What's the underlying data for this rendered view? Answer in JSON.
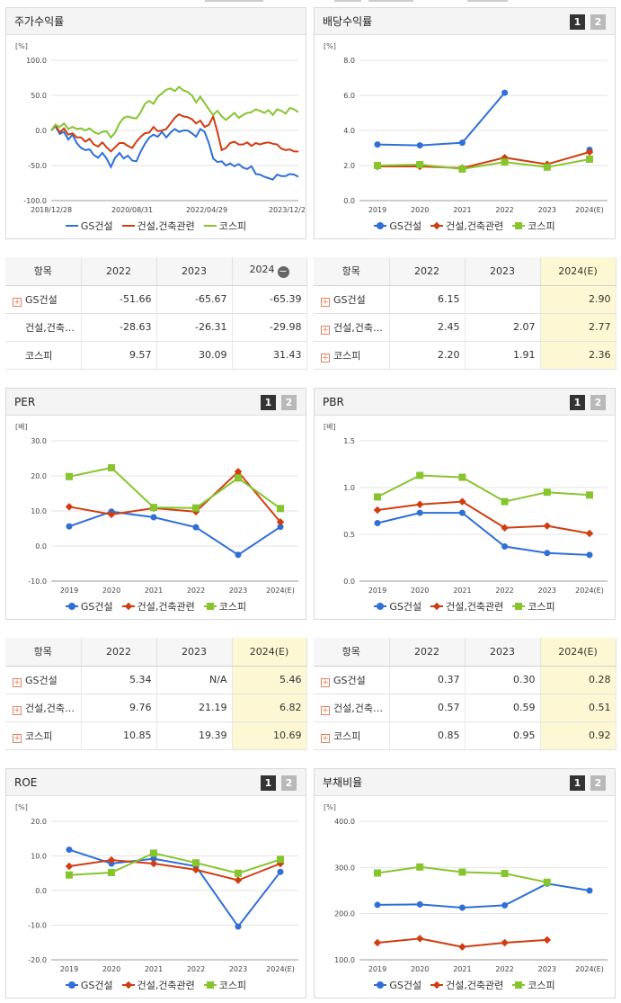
{
  "legend": {
    "s1": "GS건설",
    "s2": "건설,건축관련",
    "s3": "코스피"
  },
  "colors": {
    "s1": "#2f6fd8",
    "s2": "#d03d10",
    "s3": "#86c52e"
  },
  "pager": {
    "p1": "1",
    "p2": "2"
  },
  "table_header_item": "항목",
  "charts": {
    "return": {
      "title": "주가수익률",
      "unit": "[%]",
      "type": "line",
      "y_ticks": [
        "100.0",
        "50.0",
        "0.0",
        "-50.0",
        "-100.0"
      ],
      "ylim": [
        -100,
        100
      ],
      "x_labels": [
        "2018/12/28",
        "2020/08/31",
        "2022/04/29",
        "2023/12/28"
      ],
      "series": {
        "s1": [
          0,
          6,
          -5,
          -2,
          -13,
          -6,
          -18,
          -25,
          -28,
          -27,
          -35,
          -39,
          -32,
          -40,
          -52,
          -39,
          -32,
          -40,
          -36,
          -43,
          -44,
          -30,
          -19,
          -10,
          -6,
          -9,
          -2,
          -10,
          -3,
          2,
          -2,
          0,
          0,
          -4,
          -9,
          2,
          -2,
          -18,
          -40,
          -45,
          -44,
          -50,
          -47,
          -51,
          -48,
          -53,
          -55,
          -51,
          -62,
          -63,
          -66,
          -68,
          -70,
          -63,
          -65,
          -65,
          -62,
          -63,
          -66
        ],
        "s2": [
          0,
          8,
          -3,
          3,
          -6,
          -4,
          -10,
          -10,
          -16,
          -12,
          -20,
          -23,
          -17,
          -24,
          -30,
          -24,
          -18,
          -18,
          -22,
          -25,
          -16,
          -9,
          -4,
          -3,
          5,
          -1,
          0,
          2,
          10,
          18,
          23,
          20,
          19,
          16,
          10,
          14,
          5,
          8,
          20,
          -2,
          -28,
          -25,
          -18,
          -16,
          -20,
          -20,
          -17,
          -22,
          -18,
          -20,
          -18,
          -17,
          -19,
          -20,
          -26,
          -28,
          -27,
          -30,
          -30
        ],
        "s3": [
          0,
          8,
          5,
          10,
          2,
          5,
          2,
          3,
          0,
          3,
          -2,
          -5,
          -2,
          -1,
          -10,
          -3,
          10,
          18,
          20,
          18,
          17,
          26,
          38,
          42,
          38,
          48,
          53,
          58,
          60,
          56,
          62,
          57,
          55,
          50,
          40,
          48,
          39,
          30,
          22,
          28,
          20,
          15,
          20,
          25,
          18,
          22,
          25,
          26,
          30,
          28,
          25,
          29,
          22,
          30,
          28,
          24,
          32,
          30,
          26
        ]
      }
    },
    "dividend": {
      "title": "배당수익률",
      "unit": "[%]",
      "type": "line",
      "y_ticks": [
        "8.0",
        "6.0",
        "4.0",
        "2.0",
        "0.0"
      ],
      "ylim": [
        0,
        8
      ],
      "x_labels": [
        "2019",
        "2020",
        "2021",
        "2022",
        "2023",
        "2024(E)"
      ],
      "series": {
        "s1": [
          3.2,
          3.15,
          3.3,
          6.15,
          null,
          2.9
        ],
        "s2": [
          1.95,
          1.95,
          1.85,
          2.45,
          2.07,
          2.77
        ],
        "s3": [
          2.0,
          2.05,
          1.8,
          2.2,
          1.91,
          2.36
        ]
      }
    },
    "per": {
      "title": "PER",
      "unit": "[배]",
      "type": "line",
      "y_ticks": [
        "30.0",
        "20.0",
        "10.0",
        "0.0",
        "-10.0"
      ],
      "ylim": [
        -10,
        30
      ],
      "x_labels": [
        "2019",
        "2020",
        "2021",
        "2022",
        "2023",
        "2024(E)"
      ],
      "series": {
        "s1": [
          5.6,
          9.8,
          8.2,
          5.34,
          -2.5,
          5.46
        ],
        "s2": [
          11.2,
          9.0,
          10.8,
          9.76,
          21.19,
          6.82
        ],
        "s3": [
          19.8,
          22.3,
          11.0,
          10.85,
          19.39,
          10.69
        ]
      }
    },
    "pbr": {
      "title": "PBR",
      "unit": "[배]",
      "type": "line",
      "y_ticks": [
        "1.5",
        "1.0",
        "0.5",
        "0.0"
      ],
      "ylim": [
        0,
        1.5
      ],
      "x_labels": [
        "2019",
        "2020",
        "2021",
        "2022",
        "2023",
        "2024(E)"
      ],
      "series": {
        "s1": [
          0.62,
          0.73,
          0.73,
          0.37,
          0.3,
          0.28
        ],
        "s2": [
          0.76,
          0.82,
          0.85,
          0.57,
          0.59,
          0.51
        ],
        "s3": [
          0.9,
          1.13,
          1.11,
          0.85,
          0.95,
          0.92
        ]
      }
    },
    "roe": {
      "title": "ROE",
      "unit": "[%]",
      "type": "line",
      "y_ticks": [
        "20.0",
        "10.0",
        "0.0",
        "-10.0",
        "-20.0"
      ],
      "ylim": [
        -20,
        20
      ],
      "x_labels": [
        "2019",
        "2020",
        "2021",
        "2022",
        "2023",
        "2024(E)"
      ],
      "series": {
        "s1": [
          11.8,
          7.8,
          9.2,
          7.0,
          -10.4,
          5.4
        ],
        "s2": [
          7.0,
          8.8,
          7.8,
          6.0,
          3.0,
          7.8
        ],
        "s3": [
          4.5,
          5.2,
          10.8,
          8.0,
          5.0,
          9.0
        ]
      }
    },
    "debt": {
      "title": "부채비율",
      "unit": "[%]",
      "type": "line",
      "y_ticks": [
        "400.0",
        "300.0",
        "200.0",
        "100.0"
      ],
      "ylim": [
        100,
        400
      ],
      "x_labels": [
        "2019",
        "2020",
        "2021",
        "2022",
        "2023",
        "2024(E)"
      ],
      "series": {
        "s1": [
          219,
          220,
          213,
          218,
          265,
          250
        ],
        "s2": [
          137,
          146,
          128,
          137,
          143,
          null
        ],
        "s3": [
          288,
          301,
          290,
          287,
          268,
          null
        ]
      }
    }
  },
  "tables": {
    "return": {
      "cols": [
        "2022",
        "2023",
        "2024"
      ],
      "rows": [
        {
          "name": "GS건설",
          "vals": [
            "-51.66",
            "-65.67",
            "-65.39"
          ]
        },
        {
          "name": "건설,건축…",
          "vals": [
            "-28.63",
            "-26.31",
            "-29.98"
          ]
        },
        {
          "name": "코스피",
          "vals": [
            "9.57",
            "30.09",
            "31.43"
          ]
        }
      ]
    },
    "dividend": {
      "cols": [
        "2022",
        "2023",
        "2024(E)"
      ],
      "rows": [
        {
          "name": "GS건설",
          "vals": [
            "6.15",
            "",
            "2.90"
          ]
        },
        {
          "name": "건설,건축…",
          "vals": [
            "2.45",
            "2.07",
            "2.77"
          ]
        },
        {
          "name": "코스피",
          "vals": [
            "2.20",
            "1.91",
            "2.36"
          ]
        }
      ]
    },
    "per": {
      "cols": [
        "2022",
        "2023",
        "2024(E)"
      ],
      "rows": [
        {
          "name": "GS건설",
          "vals": [
            "5.34",
            "N/A",
            "5.46"
          ]
        },
        {
          "name": "건설,건축…",
          "vals": [
            "9.76",
            "21.19",
            "6.82"
          ]
        },
        {
          "name": "코스피",
          "vals": [
            "10.85",
            "19.39",
            "10.69"
          ]
        }
      ]
    },
    "pbr": {
      "cols": [
        "2022",
        "2023",
        "2024(E)"
      ],
      "rows": [
        {
          "name": "GS건설",
          "vals": [
            "0.37",
            "0.30",
            "0.28"
          ]
        },
        {
          "name": "건설,건축…",
          "vals": [
            "0.57",
            "0.59",
            "0.51"
          ]
        },
        {
          "name": "코스피",
          "vals": [
            "0.85",
            "0.95",
            "0.92"
          ]
        }
      ]
    }
  }
}
